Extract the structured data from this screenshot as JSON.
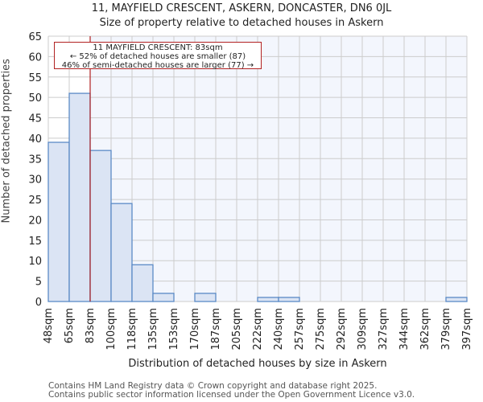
{
  "title_line1": "11, MAYFIELD CRESCENT, ASKERN, DONCASTER, DN6 0JL",
  "title_line2": "Size of property relative to detached houses in Askern",
  "annotation": {
    "line1": "11 MAYFIELD CRESCENT: 83sqm",
    "line2": "← 52% of detached houses are smaller (87)",
    "line3": "46% of semi-detached houses are larger (77) →"
  },
  "footer": {
    "line1": "Contains HM Land Registry data © Crown copyright and database right 2025.",
    "line2": "Contains public sector information licensed under the Open Government Licence v3.0."
  },
  "colors": {
    "bar_fill": "#dbe4f4",
    "bar_edge": "#5b8ac6",
    "marker": "#b22222",
    "plot_bg_right": "#f3f6fd",
    "grid": "#cccccc"
  },
  "chart_data": {
    "type": "bar",
    "title": "11, MAYFIELD CRESCENT, ASKERN, DONCASTER, DN6 0JL — Size of property relative to detached houses in Askern",
    "xlabel": "Distribution of detached houses by size in Askern",
    "ylabel": "Number of detached properties",
    "categories": [
      "48sqm",
      "65sqm",
      "83sqm",
      "100sqm",
      "118sqm",
      "135sqm",
      "153sqm",
      "170sqm",
      "187sqm",
      "205sqm",
      "222sqm",
      "240sqm",
      "257sqm",
      "275sqm",
      "292sqm",
      "309sqm",
      "327sqm",
      "344sqm",
      "362sqm",
      "379sqm",
      "397sqm"
    ],
    "values": [
      39,
      51,
      37,
      24,
      9,
      2,
      0,
      2,
      0,
      0,
      1,
      1,
      0,
      0,
      0,
      0,
      0,
      0,
      0,
      1
    ],
    "yticks": [
      0,
      5,
      10,
      15,
      20,
      25,
      30,
      35,
      40,
      45,
      50,
      55,
      60,
      65
    ],
    "ylim": [
      0,
      65
    ],
    "grid": true,
    "marker_value": "83sqm",
    "legend": null
  }
}
